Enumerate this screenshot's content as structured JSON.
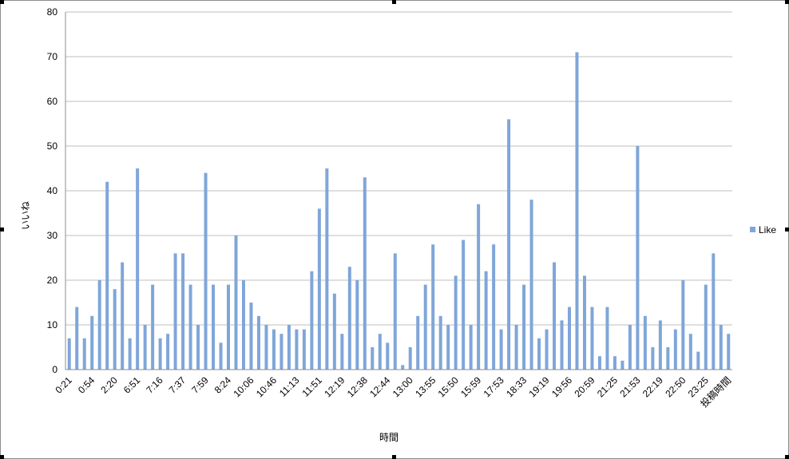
{
  "chart_data": {
    "type": "bar",
    "xlabel": "時間",
    "ylabel": "いいね",
    "ylim": [
      0,
      80
    ],
    "yticks": [
      0,
      10,
      20,
      30,
      40,
      50,
      60,
      70,
      80
    ],
    "grid": true,
    "legend_position": "right",
    "bar_color": "#7fa6d9",
    "gridline_color": "#bfbfbf",
    "x_tick_labels": [
      "0:21",
      "0:54",
      "2:20",
      "6:51",
      "7:16",
      "7:37",
      "7:59",
      "8:24",
      "10:06",
      "10:46",
      "11:13",
      "11:51",
      "12:19",
      "12:38",
      "12:44",
      "13:00",
      "13:55",
      "15:50",
      "15:59",
      "17:53",
      "18:33",
      "19:19",
      "19:56",
      "20:59",
      "21:25",
      "21:53",
      "22:19",
      "22:50",
      "23:25",
      "投稿時間"
    ],
    "series": [
      {
        "name": "Like",
        "values": [
          7,
          14,
          7,
          12,
          20,
          42,
          18,
          24,
          7,
          45,
          10,
          19,
          7,
          8,
          26,
          26,
          19,
          10,
          44,
          19,
          6,
          19,
          30,
          20,
          15,
          12,
          10,
          9,
          8,
          10,
          9,
          9,
          22,
          36,
          45,
          17,
          8,
          23,
          20,
          43,
          5,
          8,
          6,
          26,
          1,
          5,
          12,
          19,
          28,
          12,
          10,
          21,
          29,
          10,
          37,
          22,
          28,
          9,
          56,
          10,
          19,
          38,
          7,
          9,
          24,
          11,
          14,
          71,
          21,
          14,
          3,
          14,
          3,
          2,
          10,
          50,
          12,
          5,
          11,
          5,
          9,
          20,
          8,
          4,
          19,
          26,
          10,
          8
        ]
      }
    ]
  }
}
